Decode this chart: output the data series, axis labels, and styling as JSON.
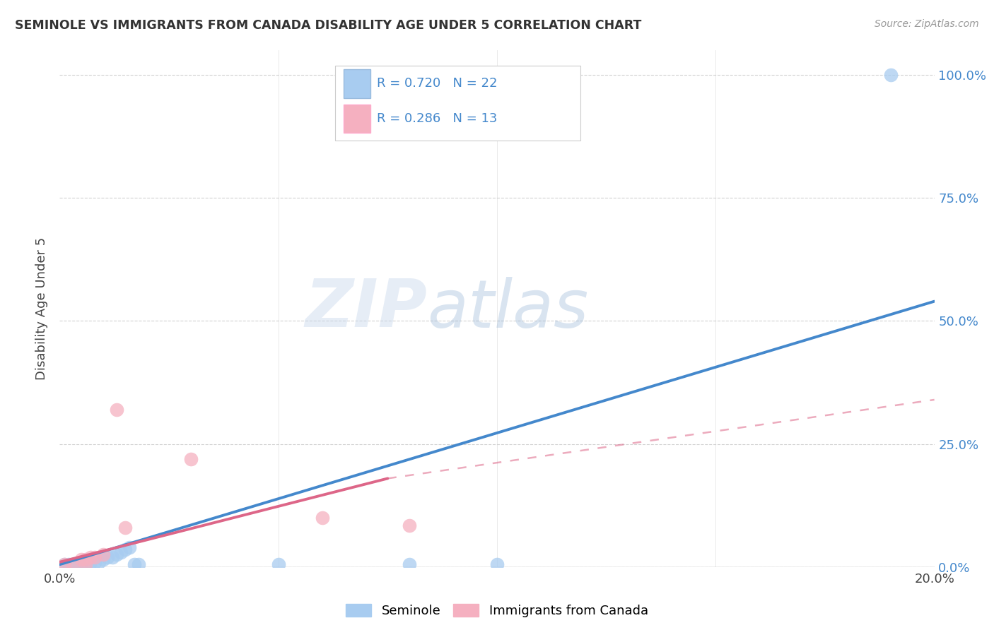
{
  "title": "SEMINOLE VS IMMIGRANTS FROM CANADA DISABILITY AGE UNDER 5 CORRELATION CHART",
  "source": "Source: ZipAtlas.com",
  "ylabel": "Disability Age Under 5",
  "xlim": [
    0.0,
    0.2
  ],
  "ylim": [
    0.0,
    1.05
  ],
  "xtick_labels": [
    "0.0%",
    "20.0%"
  ],
  "ytick_labels": [
    "0.0%",
    "25.0%",
    "50.0%",
    "75.0%",
    "100.0%"
  ],
  "ytick_positions": [
    0.0,
    0.25,
    0.5,
    0.75,
    1.0
  ],
  "seminole_color": "#A8CCF0",
  "canada_color": "#F5B0C0",
  "seminole_line_color": "#4488CC",
  "canada_line_color": "#DD6688",
  "R_seminole": "0.720",
  "N_seminole": "22",
  "R_canada": "0.286",
  "N_canada": "13",
  "watermark_zip": "ZIP",
  "watermark_atlas": "atlas",
  "seminole_points": [
    [
      0.001,
      0.005
    ],
    [
      0.002,
      0.005
    ],
    [
      0.003,
      0.005
    ],
    [
      0.004,
      0.005
    ],
    [
      0.005,
      0.005
    ],
    [
      0.006,
      0.005
    ],
    [
      0.007,
      0.01
    ],
    [
      0.008,
      0.01
    ],
    [
      0.009,
      0.01
    ],
    [
      0.01,
      0.015
    ],
    [
      0.011,
      0.02
    ],
    [
      0.012,
      0.02
    ],
    [
      0.013,
      0.025
    ],
    [
      0.014,
      0.03
    ],
    [
      0.015,
      0.035
    ],
    [
      0.016,
      0.04
    ],
    [
      0.017,
      0.005
    ],
    [
      0.018,
      0.005
    ],
    [
      0.05,
      0.005
    ],
    [
      0.08,
      0.005
    ],
    [
      0.1,
      0.005
    ],
    [
      0.19,
      1.0
    ]
  ],
  "canada_points": [
    [
      0.001,
      0.005
    ],
    [
      0.003,
      0.005
    ],
    [
      0.005,
      0.015
    ],
    [
      0.006,
      0.015
    ],
    [
      0.007,
      0.02
    ],
    [
      0.008,
      0.02
    ],
    [
      0.01,
      0.025
    ],
    [
      0.013,
      0.32
    ],
    [
      0.015,
      0.08
    ],
    [
      0.03,
      0.22
    ],
    [
      0.06,
      0.1
    ],
    [
      0.08,
      0.085
    ],
    [
      0.006,
      0.005
    ]
  ],
  "seminole_line": {
    "x0": 0.0,
    "y0": 0.005,
    "x1": 0.2,
    "y1": 0.54
  },
  "canada_line_solid": {
    "x0": 0.0,
    "y0": 0.01,
    "x1": 0.075,
    "y1": 0.18
  },
  "canada_line_dashed": {
    "x0": 0.075,
    "y0": 0.18,
    "x1": 0.2,
    "y1": 0.34
  },
  "background_color": "#FFFFFF",
  "plot_bg_color": "#FFFFFF",
  "grid_color": "#CCCCCC"
}
